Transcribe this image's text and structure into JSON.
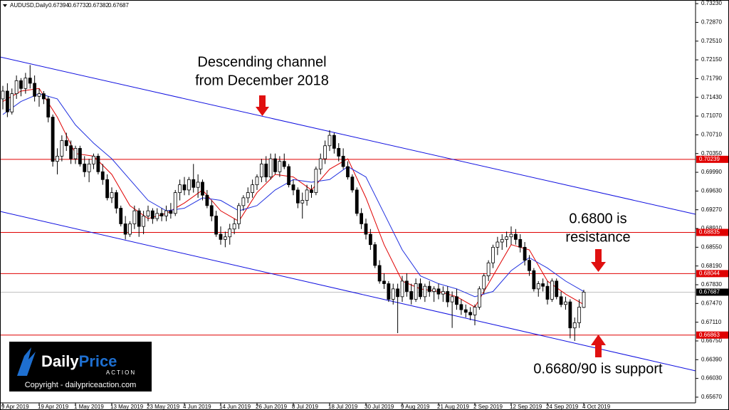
{
  "chart_data": {
    "type": "candlestick",
    "symbol": "AUDUSD,Daily",
    "categories": [
      "9 Apr 2019",
      null,
      null,
      null,
      null,
      null,
      null,
      null,
      "19 Apr 2019",
      null,
      null,
      null,
      null,
      null,
      null,
      null,
      "1 May 2019",
      null,
      null,
      null,
      null,
      null,
      null,
      null,
      "13 May 2019",
      null,
      null,
      null,
      null,
      null,
      null,
      null,
      "23 May 2019",
      null,
      null,
      null,
      null,
      null,
      null,
      null,
      "4 Jun 2019",
      null,
      null,
      null,
      null,
      null,
      null,
      null,
      "14 Jun 2019",
      null,
      null,
      null,
      null,
      null,
      null,
      null,
      "26 Jun 2019",
      null,
      null,
      null,
      null,
      null,
      null,
      null,
      "8 Jul 2019",
      null,
      null,
      null,
      null,
      null,
      null,
      null,
      "18 Jul 2019",
      null,
      null,
      null,
      null,
      null,
      null,
      null,
      "30 Jul 2019",
      null,
      null,
      null,
      null,
      null,
      null,
      null,
      "9 Aug 2019",
      null,
      null,
      null,
      null,
      null,
      null,
      null,
      "21 Aug 2019",
      null,
      null,
      null,
      null,
      null,
      null,
      null,
      "2 Sep 2019",
      null,
      null,
      null,
      null,
      null,
      null,
      null,
      "12 Sep 2019",
      null,
      null,
      null,
      null,
      null,
      null,
      null,
      "24 Sep 2019",
      null,
      null,
      null,
      null,
      null,
      null,
      null,
      "4 Oct 2019"
    ],
    "ohlc": [
      [
        0.714,
        0.7165,
        0.712,
        0.7155
      ],
      [
        0.7155,
        0.717,
        0.7105,
        0.7115
      ],
      [
        0.7115,
        0.716,
        0.711,
        0.715
      ],
      [
        0.715,
        0.7185,
        0.714,
        0.7175
      ],
      [
        0.7175,
        0.718,
        0.7145,
        0.716
      ],
      [
        0.716,
        0.719,
        0.715,
        0.718
      ],
      [
        0.718,
        0.7205,
        0.716,
        0.717
      ],
      [
        0.717,
        0.7185,
        0.7135,
        0.7145
      ],
      [
        0.7145,
        0.716,
        0.7125,
        0.715
      ],
      [
        0.715,
        0.7155,
        0.713,
        0.714
      ],
      [
        0.714,
        0.7145,
        0.7095,
        0.7105
      ],
      [
        0.7105,
        0.711,
        0.701,
        0.702
      ],
      [
        0.702,
        0.7045,
        0.6995,
        0.703
      ],
      [
        0.703,
        0.707,
        0.702,
        0.706
      ],
      [
        0.706,
        0.7075,
        0.704,
        0.705
      ],
      [
        0.705,
        0.706,
        0.7015,
        0.7025
      ],
      [
        0.7025,
        0.705,
        0.7015,
        0.7045
      ],
      [
        0.7045,
        0.705,
        0.701,
        0.7015
      ],
      [
        0.7015,
        0.703,
        0.699,
        0.7
      ],
      [
        0.7,
        0.7025,
        0.698,
        0.7015
      ],
      [
        0.7015,
        0.7035,
        0.7005,
        0.703
      ],
      [
        0.703,
        0.7035,
        0.6995,
        0.7
      ],
      [
        0.7,
        0.7015,
        0.6975,
        0.6985
      ],
      [
        0.6985,
        0.6995,
        0.6945,
        0.695
      ],
      [
        0.695,
        0.697,
        0.694,
        0.696
      ],
      [
        0.696,
        0.6965,
        0.692,
        0.693
      ],
      [
        0.693,
        0.6935,
        0.6895,
        0.69
      ],
      [
        0.69,
        0.6915,
        0.687,
        0.688
      ],
      [
        0.688,
        0.6905,
        0.6875,
        0.69
      ],
      [
        0.69,
        0.6935,
        0.689,
        0.6925
      ],
      [
        0.6925,
        0.693,
        0.6875,
        0.6895
      ],
      [
        0.6895,
        0.6925,
        0.688,
        0.6915
      ],
      [
        0.6915,
        0.6935,
        0.6905,
        0.6925
      ],
      [
        0.6925,
        0.693,
        0.69,
        0.691
      ],
      [
        0.691,
        0.693,
        0.6905,
        0.692
      ],
      [
        0.692,
        0.693,
        0.6905,
        0.6915
      ],
      [
        0.6915,
        0.6935,
        0.6905,
        0.6925
      ],
      [
        0.6925,
        0.694,
        0.691,
        0.692
      ],
      [
        0.692,
        0.6965,
        0.6915,
        0.696
      ],
      [
        0.696,
        0.6985,
        0.6945,
        0.6975
      ],
      [
        0.6975,
        0.699,
        0.6955,
        0.6965
      ],
      [
        0.6965,
        0.699,
        0.6955,
        0.6985
      ],
      [
        0.6985,
        0.7015,
        0.696,
        0.697
      ],
      [
        0.697,
        0.6995,
        0.695,
        0.698
      ],
      [
        0.698,
        0.6985,
        0.6945,
        0.6955
      ],
      [
        0.6955,
        0.6965,
        0.693,
        0.6935
      ],
      [
        0.6935,
        0.6945,
        0.6905,
        0.6915
      ],
      [
        0.6915,
        0.6925,
        0.6875,
        0.688
      ],
      [
        0.688,
        0.6895,
        0.686,
        0.687
      ],
      [
        0.687,
        0.6885,
        0.6855,
        0.6875
      ],
      [
        0.6875,
        0.69,
        0.686,
        0.689
      ],
      [
        0.689,
        0.691,
        0.688,
        0.69
      ],
      [
        0.69,
        0.694,
        0.689,
        0.6935
      ],
      [
        0.6935,
        0.6955,
        0.6925,
        0.695
      ],
      [
        0.695,
        0.697,
        0.694,
        0.696
      ],
      [
        0.696,
        0.6985,
        0.695,
        0.6975
      ],
      [
        0.6975,
        0.6995,
        0.6965,
        0.699
      ],
      [
        0.699,
        0.7025,
        0.698,
        0.7015
      ],
      [
        0.7015,
        0.703,
        0.698,
        0.699
      ],
      [
        0.699,
        0.7035,
        0.6985,
        0.7025
      ],
      [
        0.7025,
        0.7035,
        0.6995,
        0.7
      ],
      [
        0.7,
        0.703,
        0.699,
        0.702
      ],
      [
        0.702,
        0.7035,
        0.7005,
        0.701
      ],
      [
        0.701,
        0.7015,
        0.697,
        0.6975
      ],
      [
        0.6975,
        0.6985,
        0.6955,
        0.6965
      ],
      [
        0.6965,
        0.697,
        0.693,
        0.694
      ],
      [
        0.694,
        0.696,
        0.691,
        0.6945
      ],
      [
        0.6945,
        0.6975,
        0.6935,
        0.6965
      ],
      [
        0.6965,
        0.6975,
        0.695,
        0.696
      ],
      [
        0.696,
        0.701,
        0.6955,
        0.7005
      ],
      [
        0.7005,
        0.7035,
        0.6995,
        0.7025
      ],
      [
        0.7025,
        0.706,
        0.7015,
        0.705
      ],
      [
        0.705,
        0.708,
        0.704,
        0.707
      ],
      [
        0.707,
        0.7075,
        0.7035,
        0.7045
      ],
      [
        0.7045,
        0.7055,
        0.702,
        0.703
      ],
      [
        0.703,
        0.7045,
        0.7005,
        0.701
      ],
      [
        0.701,
        0.702,
        0.6985,
        0.699
      ],
      [
        0.699,
        0.6995,
        0.696,
        0.6965
      ],
      [
        0.6965,
        0.697,
        0.6915,
        0.692
      ],
      [
        0.692,
        0.693,
        0.689,
        0.69
      ],
      [
        0.69,
        0.691,
        0.687,
        0.688
      ],
      [
        0.688,
        0.689,
        0.685,
        0.686
      ],
      [
        0.686,
        0.6865,
        0.6815,
        0.682
      ],
      [
        0.682,
        0.683,
        0.6785,
        0.679
      ],
      [
        0.679,
        0.6805,
        0.6775,
        0.6785
      ],
      [
        0.6785,
        0.679,
        0.675,
        0.6755
      ],
      [
        0.6755,
        0.6785,
        0.6745,
        0.6775
      ],
      [
        0.6775,
        0.6785,
        0.669,
        0.676
      ],
      [
        0.676,
        0.68,
        0.675,
        0.679
      ],
      [
        0.679,
        0.6805,
        0.676,
        0.677
      ],
      [
        0.677,
        0.6785,
        0.6745,
        0.6755
      ],
      [
        0.6755,
        0.6795,
        0.675,
        0.6785
      ],
      [
        0.6785,
        0.6795,
        0.6755,
        0.676
      ],
      [
        0.676,
        0.6785,
        0.675,
        0.678
      ],
      [
        0.678,
        0.679,
        0.676,
        0.677
      ],
      [
        0.677,
        0.678,
        0.675,
        0.6775
      ],
      [
        0.6775,
        0.6785,
        0.6755,
        0.6765
      ],
      [
        0.6765,
        0.678,
        0.675,
        0.677
      ],
      [
        0.677,
        0.678,
        0.674,
        0.675
      ],
      [
        0.675,
        0.677,
        0.67,
        0.676
      ],
      [
        0.676,
        0.6775,
        0.6735,
        0.6745
      ],
      [
        0.6745,
        0.6755,
        0.6725,
        0.6735
      ],
      [
        0.6735,
        0.6745,
        0.672,
        0.673
      ],
      [
        0.673,
        0.674,
        0.6715,
        0.6725
      ],
      [
        0.6725,
        0.6745,
        0.6705,
        0.674
      ],
      [
        0.674,
        0.678,
        0.6735,
        0.6775
      ],
      [
        0.6775,
        0.6805,
        0.6765,
        0.68
      ],
      [
        0.68,
        0.683,
        0.679,
        0.6825
      ],
      [
        0.6825,
        0.686,
        0.6815,
        0.6855
      ],
      [
        0.6855,
        0.6875,
        0.684,
        0.6865
      ],
      [
        0.6865,
        0.688,
        0.685,
        0.687
      ],
      [
        0.687,
        0.6885,
        0.6855,
        0.6875
      ],
      [
        0.6875,
        0.6895,
        0.686,
        0.688
      ],
      [
        0.688,
        0.689,
        0.686,
        0.687
      ],
      [
        0.687,
        0.688,
        0.6845,
        0.6855
      ],
      [
        0.6855,
        0.6865,
        0.682,
        0.683
      ],
      [
        0.683,
        0.684,
        0.68,
        0.681
      ],
      [
        0.681,
        0.6815,
        0.677,
        0.6775
      ],
      [
        0.6775,
        0.679,
        0.676,
        0.6785
      ],
      [
        0.6785,
        0.6795,
        0.677,
        0.678
      ],
      [
        0.678,
        0.679,
        0.6745,
        0.6755
      ],
      [
        0.6755,
        0.6795,
        0.675,
        0.679
      ],
      [
        0.679,
        0.6795,
        0.6755,
        0.676
      ],
      [
        0.676,
        0.677,
        0.674,
        0.6745
      ],
      [
        0.6745,
        0.676,
        0.6735,
        0.675
      ],
      [
        0.675,
        0.6755,
        0.668,
        0.67
      ],
      [
        0.67,
        0.672,
        0.6675,
        0.671
      ],
      [
        0.671,
        0.6755,
        0.67,
        0.674
      ],
      [
        0.67394,
        0.67732,
        0.67382,
        0.67687
      ]
    ],
    "bull_color": "#ffffff",
    "bear_color": "#000000",
    "series": [
      {
        "color": "#e00000",
        "x": [
          0,
          4,
          8,
          12,
          16,
          20,
          24,
          28,
          32,
          36,
          40,
          44,
          48,
          52,
          56,
          60,
          64,
          68,
          72,
          76,
          80,
          84,
          88,
          92,
          96,
          100,
          104,
          108,
          112,
          116,
          120,
          124,
          128
        ],
        "values": [
          0.7135,
          0.7155,
          0.716,
          0.7105,
          0.7035,
          0.703,
          0.6995,
          0.6935,
          0.691,
          0.692,
          0.694,
          0.6965,
          0.6925,
          0.6905,
          0.696,
          0.6995,
          0.699,
          0.6965,
          0.7005,
          0.7025,
          0.695,
          0.686,
          0.679,
          0.6775,
          0.677,
          0.676,
          0.674,
          0.68,
          0.686,
          0.685,
          0.679,
          0.6765,
          0.6745
        ]
      },
      {
        "color": "#2030e0",
        "x": [
          0,
          4,
          8,
          12,
          16,
          20,
          24,
          28,
          32,
          36,
          40,
          44,
          48,
          52,
          56,
          60,
          64,
          68,
          72,
          76,
          80,
          84,
          88,
          92,
          96,
          100,
          104,
          108,
          112,
          116,
          120,
          124,
          128
        ],
        "values": [
          0.711,
          0.7135,
          0.715,
          0.714,
          0.709,
          0.7055,
          0.7025,
          0.6985,
          0.6945,
          0.6925,
          0.693,
          0.695,
          0.6945,
          0.6925,
          0.6935,
          0.6965,
          0.6985,
          0.698,
          0.6985,
          0.701,
          0.699,
          0.692,
          0.685,
          0.68,
          0.6785,
          0.6775,
          0.676,
          0.677,
          0.681,
          0.6835,
          0.6815,
          0.679,
          0.677
        ]
      }
    ],
    "levels": [
      {
        "value": 0.70239,
        "color": "#e00000"
      },
      {
        "value": 0.68835,
        "color": "#e00000"
      },
      {
        "value": 0.68044,
        "color": "#e00000"
      },
      {
        "value": 0.67687,
        "color": "#c0c0c0"
      },
      {
        "value": 0.66863,
        "color": "#e00000"
      }
    ],
    "ylim": [
      0.6556,
      0.733
    ],
    "yticks": [
      {
        "value": 0.7323,
        "label": "0.73230"
      },
      {
        "value": 0.7287,
        "label": "0.72870"
      },
      {
        "value": 0.7251,
        "label": "0.72510"
      },
      {
        "value": 0.7215,
        "label": "0.72150"
      },
      {
        "value": 0.7179,
        "label": "0.71790"
      },
      {
        "value": 0.7143,
        "label": "0.71430"
      },
      {
        "value": 0.7107,
        "label": "0.71070"
      },
      {
        "value": 0.7071,
        "label": "0.70710"
      },
      {
        "value": 0.7035,
        "label": "0.70350"
      },
      {
        "value": 0.6999,
        "label": "0.69990"
      },
      {
        "value": 0.6963,
        "label": "0.69630"
      },
      {
        "value": 0.6927,
        "label": "0.69270"
      },
      {
        "value": 0.6891,
        "label": "0.68910"
      },
      {
        "value": 0.6855,
        "label": "0.68550"
      },
      {
        "value": 0.6819,
        "label": "0.68190"
      },
      {
        "value": 0.6783,
        "label": "0.67830"
      },
      {
        "value": 0.6747,
        "label": "0.67470"
      },
      {
        "value": 0.6711,
        "label": "0.67110"
      },
      {
        "value": 0.6675,
        "label": "0.66750"
      },
      {
        "value": 0.6639,
        "label": "0.66390"
      },
      {
        "value": 0.6603,
        "label": "0.66030"
      },
      {
        "value": 0.6567,
        "label": "0.65670"
      }
    ],
    "annotations": [
      [
        "Descending channel",
        "from December 2018"
      ],
      [
        "0.6800 is",
        "resistance"
      ],
      [
        "0.6680/90 is support"
      ]
    ],
    "logo": [
      "Daily",
      "Price",
      "ACTION"
    ],
    "copyright": "Copyright - dailypriceaction.com"
  }
}
